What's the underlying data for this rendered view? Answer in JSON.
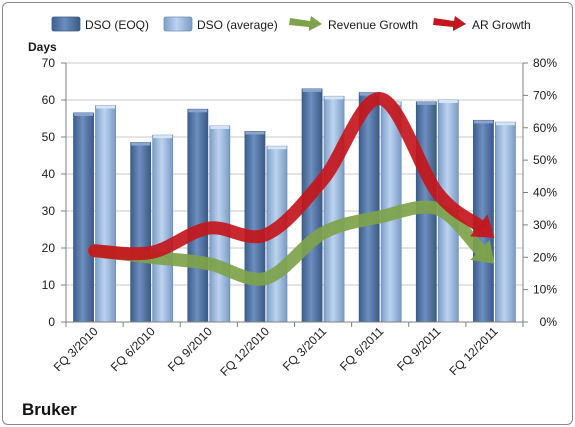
{
  "chart_data": {
    "type": "bar",
    "company": "Bruker",
    "ylabel": "Days",
    "categories": [
      "FQ 3/2010",
      "FQ 6/2010",
      "FQ 9/2010",
      "FQ 12/2010",
      "FQ 3/2011",
      "FQ 6/2011",
      "FQ 9/2011",
      "FQ 12/2011"
    ],
    "ylim": [
      0,
      70
    ],
    "yticks": [
      0,
      10,
      20,
      30,
      40,
      50,
      60,
      70
    ],
    "y2lim": [
      0,
      0.8
    ],
    "y2ticks": [
      "0%",
      "10%",
      "20%",
      "30%",
      "40%",
      "50%",
      "60%",
      "70%",
      "80%"
    ],
    "grid": true,
    "legend": "top",
    "series": [
      {
        "name": "DSO (EOQ)",
        "kind": "bar",
        "axis": "left",
        "color": "#4f6f9e",
        "values": [
          56.5,
          48.5,
          57.5,
          51.5,
          63,
          62,
          59.5,
          54.5
        ]
      },
      {
        "name": "DSO (average)",
        "kind": "bar",
        "axis": "left",
        "color": "#8fb0d8",
        "values": [
          58.5,
          50.5,
          53,
          47.5,
          61,
          59.5,
          60,
          54
        ]
      },
      {
        "name": "Revenue Growth",
        "kind": "arrow",
        "axis": "right",
        "color": "#7ea34a",
        "values": [
          0.22,
          0.2,
          0.18,
          0.135,
          0.275,
          0.325,
          0.35,
          0.18
        ]
      },
      {
        "name": "AR Growth",
        "kind": "arrow",
        "axis": "right",
        "color": "#c4161c",
        "values": [
          0.22,
          0.215,
          0.29,
          0.27,
          0.44,
          0.69,
          0.4,
          0.26
        ]
      }
    ]
  }
}
